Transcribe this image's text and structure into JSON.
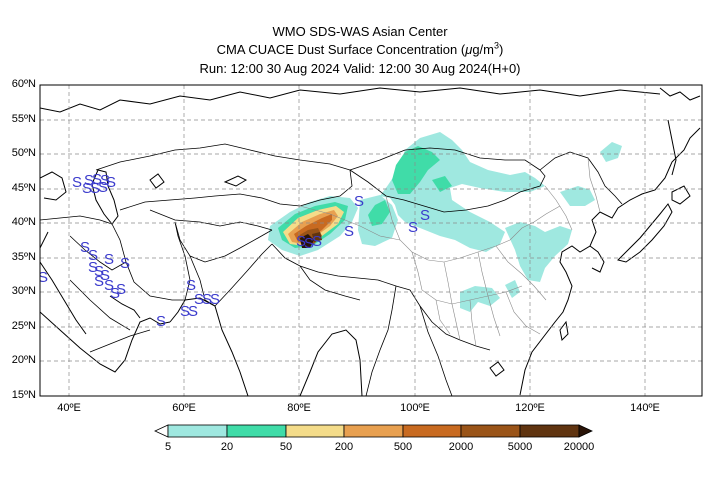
{
  "titles": {
    "line1": "WMO SDS-WAS Asian Center",
    "line2_text": "CMA CUACE Dust Surface Concentration (",
    "unit_mu": "μ",
    "unit_g": "g/m",
    "unit_exp": "3",
    "unit_close": ")",
    "line3": "Run: 12:00 30 Aug 2024    Valid: 12:00 30 Aug 2024(H+0)"
  },
  "axes": {
    "lat_labels": [
      "60ºN",
      "55ºN",
      "50ºN",
      "45ºN",
      "40ºN",
      "35ºN",
      "30ºN",
      "25ºN",
      "20ºN",
      "15ºN"
    ],
    "lon_labels": [
      "40ºE",
      "60ºE",
      "80ºE",
      "100ºE",
      "120ºE",
      "140ºE"
    ],
    "lat_range": [
      15,
      60
    ],
    "lon_range": [
      35,
      150
    ],
    "grid": "dashed"
  },
  "colorbar": {
    "levels": [
      "5",
      "20",
      "50",
      "200",
      "500",
      "2000",
      "5000",
      "20000"
    ],
    "colors": [
      "#9fe8e0",
      "#40dca8",
      "#f4dc8a",
      "#e8a050",
      "#c86a20",
      "#9a5418",
      "#603410",
      "#2a1408"
    ],
    "under_color": "#ffffff",
    "over_color": "#2a1408"
  },
  "station_marker": "S",
  "station_color": "#3a3acc"
}
